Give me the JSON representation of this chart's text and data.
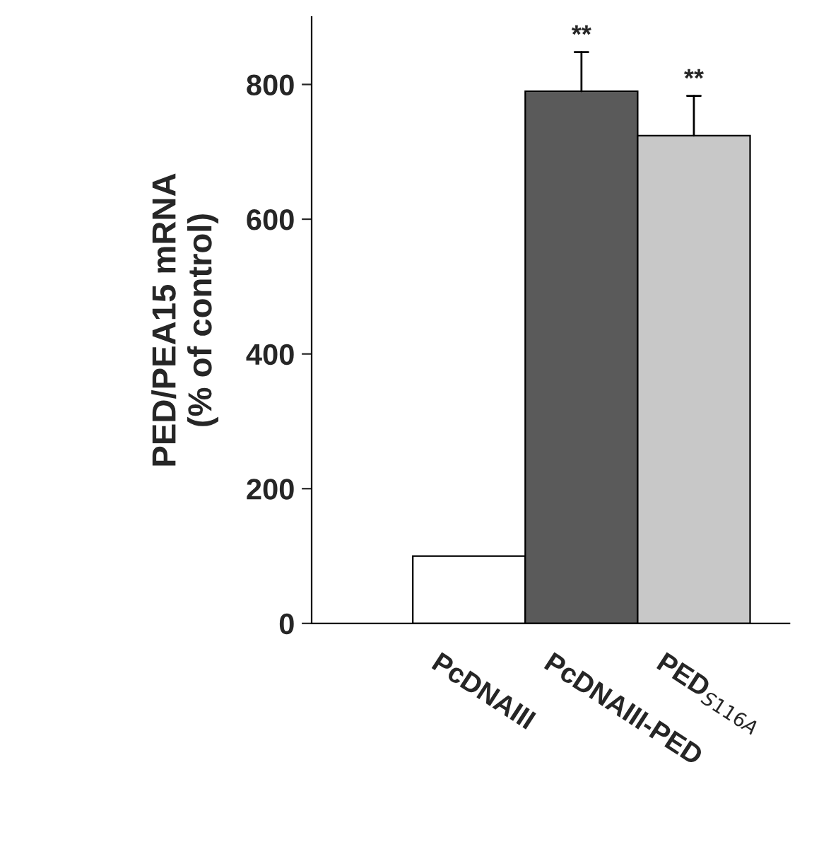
{
  "chart_data": {
    "type": "bar",
    "ylabel": "PED/PEA15 mRNA\n(% of control)",
    "categories": [
      "PcDNAIII",
      "PcDNAIII-PED",
      "PED$_{S116A}$"
    ],
    "values": [
      100,
      790,
      724
    ],
    "colors": [
      "#ffffff",
      "#5a5a5a",
      "#c8c8c8"
    ],
    "errors": [
      null,
      [
        790,
        848
      ],
      [
        724,
        783
      ]
    ],
    "annotations": [
      "**",
      "**"
    ],
    "ylim": [
      0,
      900
    ],
    "yticks": [
      0,
      200,
      400,
      600,
      800
    ],
    "grid": false
  }
}
